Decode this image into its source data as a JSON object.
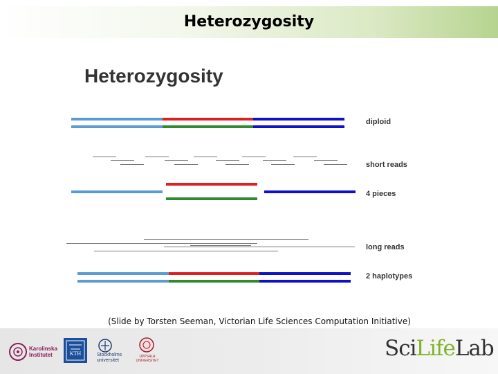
{
  "header": {
    "title": "Heterozygosity"
  },
  "slide": {
    "title": "Heterozygosity",
    "row_labels": [
      "diploid",
      "short reads",
      "4 pieces",
      "long reads",
      "2 haplotypes"
    ]
  },
  "colors": {
    "light_blue": "#5b9bd5",
    "red": "#e02020",
    "green": "#2e8b2e",
    "dark_blue": "#1010cc",
    "read_gray": "#777777",
    "header_green": "#b6d48f"
  },
  "caption": "(Slide by Torsten Seeman, Victorian Life Sciences Computation Initiative)",
  "footer": {
    "logos": [
      {
        "icon": "karolinska-institutet-logo",
        "text": "Karolinska Institutet"
      },
      {
        "icon": "kth-logo",
        "text": "KTH"
      },
      {
        "icon": "stockholms-universitet-logo",
        "text": "Stockholms universitet"
      },
      {
        "icon": "uppsala-universitet-logo",
        "text": "UPPSALA UNIVERSITET"
      }
    ],
    "brand": {
      "part1": "Sci",
      "part2": "Life",
      "part3": "Lab"
    }
  }
}
